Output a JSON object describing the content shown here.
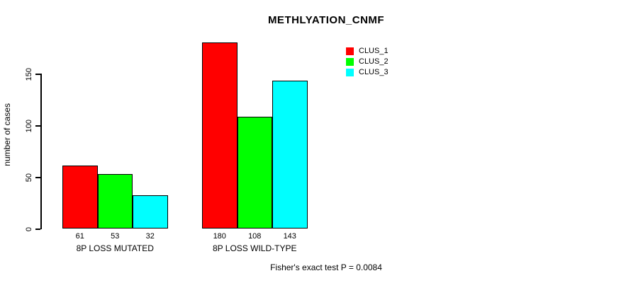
{
  "chart_data": {
    "type": "bar",
    "title": "METHLYATION_CNMF",
    "ylabel": "number of cases",
    "xlabel": "",
    "yticks": [
      0,
      50,
      100,
      150
    ],
    "ylim": [
      0,
      180
    ],
    "grid": false,
    "legend_position": "top-right",
    "categories": [
      "8P LOSS MUTATED",
      "8P LOSS WILD-TYPE"
    ],
    "series": [
      {
        "name": "CLUS_1",
        "color": "#FF0000",
        "values": [
          61,
          180
        ]
      },
      {
        "name": "CLUS_2",
        "color": "#00FF00",
        "values": [
          53,
          108
        ]
      },
      {
        "name": "CLUS_3",
        "color": "#00FFFF",
        "values": [
          32,
          143
        ]
      }
    ],
    "bar_value_labels": [
      [
        "61",
        "53",
        "32"
      ],
      [
        "180",
        "108",
        "143"
      ]
    ],
    "caption": "Fisher's exact test P = 0.0084"
  }
}
